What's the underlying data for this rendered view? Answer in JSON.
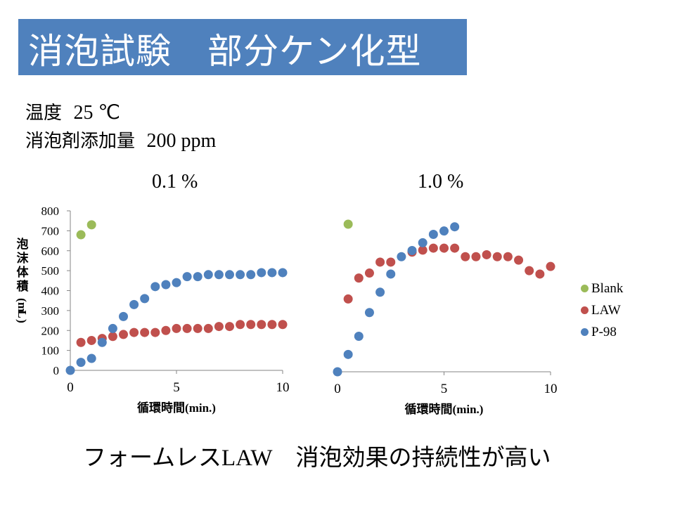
{
  "title": "消泡試験　部分ケン化型",
  "conditions": [
    {
      "label": "温度",
      "value": "25 ℃"
    },
    {
      "label": "消泡剤添加量",
      "value": "200 ppm"
    }
  ],
  "legend": [
    {
      "name": "Blank",
      "color": "#9bbb59"
    },
    {
      "name": "LAW",
      "color": "#c0504d"
    },
    {
      "name": "P-98",
      "color": "#4f81bd"
    }
  ],
  "conclusion": {
    "prefix": "フォームレス",
    "latin": "LAW",
    "suffix": "　消泡効果の持続性が高い"
  },
  "chart_data": [
    {
      "type": "scatter",
      "title": "0.1 %",
      "xlabel": "循環時間(min.)",
      "ylabel": "泡沫体積(mL)",
      "xlim": [
        0,
        10
      ],
      "ylim": [
        0,
        800
      ],
      "xticks": [
        0,
        5,
        10
      ],
      "yticks": [
        0,
        100,
        200,
        300,
        400,
        500,
        600,
        700,
        800
      ],
      "show_yticks": true,
      "legend": "right",
      "series": [
        {
          "name": "Blank",
          "x": [
            0.5,
            1.0
          ],
          "y": [
            680,
            730
          ]
        },
        {
          "name": "LAW",
          "x": [
            0.5,
            1,
            1.5,
            2,
            2.5,
            3,
            3.5,
            4,
            4.5,
            5,
            5.5,
            6,
            6.5,
            7,
            7.5,
            8,
            8.5,
            9,
            9.5,
            10
          ],
          "y": [
            140,
            150,
            160,
            170,
            180,
            190,
            190,
            190,
            200,
            210,
            210,
            210,
            210,
            220,
            220,
            230,
            230,
            230,
            230,
            230
          ]
        },
        {
          "name": "P-98",
          "x": [
            0,
            0.5,
            1,
            1.5,
            2,
            2.5,
            3,
            3.5,
            4,
            4.5,
            5,
            5.5,
            6,
            6.5,
            7,
            7.5,
            8,
            8.5,
            9,
            9.5,
            10
          ],
          "y": [
            0,
            40,
            60,
            140,
            210,
            270,
            330,
            360,
            420,
            430,
            440,
            470,
            470,
            480,
            480,
            480,
            480,
            480,
            490,
            490,
            490
          ]
        }
      ]
    },
    {
      "type": "scatter",
      "title": "1.0 %",
      "xlabel": "循環時間(min.)",
      "ylabel": "",
      "xlim": [
        0,
        10
      ],
      "ylim": [
        0,
        800
      ],
      "xticks": [
        0,
        5,
        10
      ],
      "yticks": [],
      "show_yticks": false,
      "legend": "right",
      "series": [
        {
          "name": "Blank",
          "x": [
            0.5
          ],
          "y": [
            740
          ]
        },
        {
          "name": "LAW",
          "x": [
            0.5,
            1,
            1.5,
            2,
            2.5,
            3.5,
            4,
            4.5,
            5,
            5.5,
            6,
            6.5,
            7,
            7.5,
            8,
            8.5,
            9,
            9.5,
            10
          ],
          "y": [
            365,
            470,
            495,
            550,
            550,
            600,
            610,
            620,
            620,
            620,
            577,
            577,
            587,
            577,
            577,
            560,
            507,
            490,
            528
          ]
        },
        {
          "name": "P-98",
          "x": [
            0,
            0.5,
            1,
            1.5,
            2,
            2.5,
            3,
            3.5,
            4,
            4.5,
            5,
            5.5
          ],
          "y": [
            0,
            87,
            178,
            297,
            399,
            490,
            577,
            608,
            647,
            689,
            706,
            727
          ]
        }
      ]
    }
  ]
}
